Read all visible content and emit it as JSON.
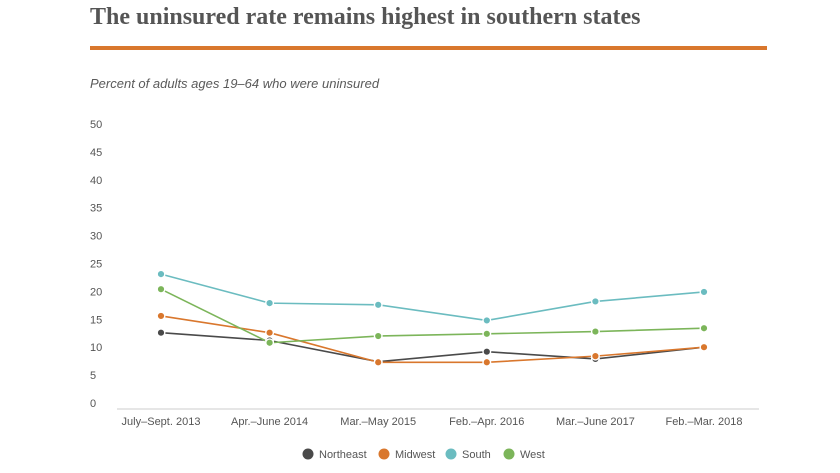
{
  "chart_data": {
    "type": "line",
    "title": "The uninsured rate remains highest in southern states",
    "subtitle": "Percent of adults ages 19–64 who were uninsured",
    "xlabel": "",
    "ylabel": "",
    "categories": [
      "July–Sept. 2013",
      "Apr.–June 2014",
      "Mar.–May 2015",
      "Feb.–Apr. 2016",
      "Mar.–June 2017",
      "Feb.–Mar. 2018"
    ],
    "yticks": [
      "0",
      "5",
      "10",
      "15",
      "20",
      "25",
      "30",
      "35",
      "40",
      "45",
      "50"
    ],
    "ylim": [
      0,
      50
    ],
    "grid": false,
    "legend_position": "bottom",
    "series": [
      {
        "name": "Northeast",
        "color": "#4a4a4a",
        "values": [
          12.6,
          11.2,
          7.4,
          9.2,
          7.9,
          10.0
        ]
      },
      {
        "name": "Midwest",
        "color": "#d9772d",
        "values": [
          15.6,
          12.6,
          7.3,
          7.3,
          8.4,
          10.0
        ]
      },
      {
        "name": "South",
        "color": "#6bbcc0",
        "values": [
          23.1,
          17.9,
          17.6,
          14.8,
          18.2,
          19.9
        ]
      },
      {
        "name": "West",
        "color": "#7cb55a",
        "values": [
          20.4,
          10.8,
          12.0,
          12.4,
          12.8,
          13.4
        ]
      }
    ]
  }
}
